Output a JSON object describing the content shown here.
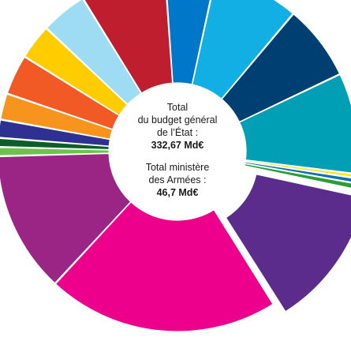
{
  "center": {
    "total_budget_line1": "Total",
    "total_budget_line2": "du budget général",
    "total_budget_line3": "de l’État :",
    "total_budget_value": "332,67 Md€",
    "armees_line1": "Total ministère",
    "armees_line2": "des Armées :",
    "armees_value": "46,7 Md€"
  },
  "chart_data": {
    "type": "pie",
    "variant": "donut",
    "title": "",
    "legend": "none",
    "slices": [
      {
        "value": 5.0,
        "color": "#0077c8"
      },
      {
        "value": 8.5,
        "color": "#11afe3"
      },
      {
        "value": 7.5,
        "color": "#003f72"
      },
      {
        "value": 10.0,
        "color": "#009fb5"
      },
      {
        "value": 0.4,
        "color": "#ffe600"
      },
      {
        "value": 0.5,
        "color": "#0073b7"
      },
      {
        "value": 0.6,
        "color": "#2a9d35"
      },
      {
        "value": 14.0,
        "color": "#5b2c8c",
        "exploded": true
      },
      {
        "value": 23.0,
        "color": "#ec008c"
      },
      {
        "value": 14.0,
        "color": "#9b2585"
      },
      {
        "value": 0.9,
        "color": "#6cc24a"
      },
      {
        "value": 0.9,
        "color": "#0b5e2a"
      },
      {
        "value": 1.8,
        "color": "#2e3192"
      },
      {
        "value": 2.6,
        "color": "#f7941d"
      },
      {
        "value": 4.0,
        "color": "#f15a24"
      },
      {
        "value": 3.5,
        "color": "#ffcc00"
      },
      {
        "value": 4.6,
        "color": "#9ddcf3"
      },
      {
        "value": 8.5,
        "color": "#be1e2d"
      }
    ]
  }
}
